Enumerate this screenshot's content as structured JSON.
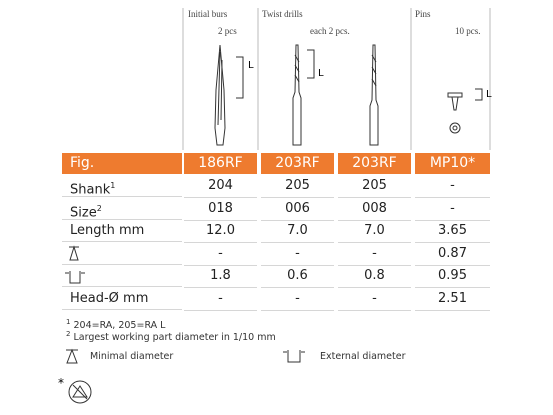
{
  "groups": [
    {
      "title": "Initial burs",
      "count": "2 pcs"
    },
    {
      "title": "Twist drills",
      "count": "each 2 pcs."
    },
    {
      "title": "Pins",
      "count": "10 pcs."
    }
  ],
  "dimension_labels": [
    "L",
    "L",
    "L"
  ],
  "table": {
    "columns": [
      "Fig.",
      "186RF",
      "203RF",
      "203RF",
      "MP10*"
    ],
    "rows": [
      {
        "label": "Shank",
        "sup": "1",
        "values": [
          "204",
          "205",
          "205",
          "-"
        ]
      },
      {
        "label": "Size",
        "sup": "2",
        "values": [
          "018",
          "006",
          "008",
          "-"
        ]
      },
      {
        "label": "Length mm",
        "values": [
          "12.0",
          "7.0",
          "7.0",
          "3.65"
        ]
      },
      {
        "values": [
          "-",
          "-",
          "-",
          "0.87"
        ]
      },
      {
        "values": [
          "1.8",
          "0.6",
          "0.8",
          "0.95"
        ]
      },
      {
        "label": "Head-Ø mm",
        "values": [
          "-",
          "-",
          "-",
          "2.51"
        ]
      }
    ]
  },
  "footnotes": [
    {
      "marker": "1",
      "text": "204=RA, 205=RA L"
    },
    {
      "marker": "2",
      "text": "Largest working part diameter in 1/10 mm"
    }
  ],
  "legend": [
    "Minimal diameter",
    "External diameter"
  ],
  "asterisk": "*"
}
